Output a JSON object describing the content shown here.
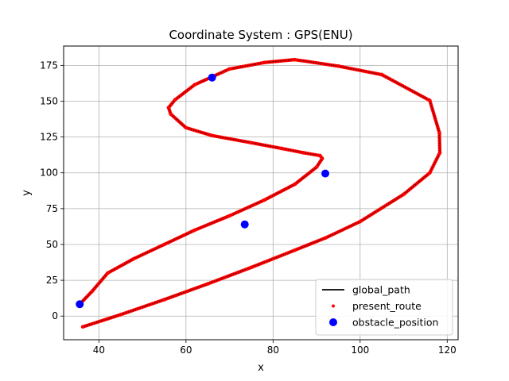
{
  "chart_data": {
    "type": "line",
    "title": "Coordinate System : GPS(ENU)",
    "xlabel": "x",
    "ylabel": "y",
    "xlim": [
      31.9,
      122.5
    ],
    "ylim": [
      -16.5,
      188.5
    ],
    "xticks": [
      40,
      60,
      80,
      100,
      120
    ],
    "yticks": [
      0,
      25,
      50,
      75,
      100,
      125,
      150,
      175
    ],
    "grid": true,
    "legend_position": "bottom-right",
    "series": [
      {
        "name": "global_path",
        "style": "line",
        "color": "#000000",
        "x": [
          36.3,
          45.0,
          55.0,
          65.0,
          75.0,
          85.0,
          92.0,
          100.0,
          110.0,
          116.0,
          118.3,
          118.2,
          116.0,
          105.0,
          95.0,
          85.0,
          78.0,
          70.0,
          62.0,
          57.5,
          56.0,
          56.5,
          60.0,
          66.0,
          75.0,
          82.0,
          87.0,
          90.8,
          91.3,
          90.0,
          85.0,
          78.0,
          70.0,
          62.0,
          55.0,
          48.0,
          42.0,
          38.5,
          35.6
        ],
        "y": [
          -7.5,
          1.0,
          11.5,
          22.5,
          34.0,
          46.0,
          54.5,
          66.0,
          85.0,
          100.0,
          114.0,
          128.0,
          150.5,
          168.5,
          174.5,
          179.0,
          177.0,
          172.5,
          161.5,
          151.0,
          145.5,
          141.0,
          131.5,
          126.0,
          121.0,
          117.0,
          114.0,
          112.0,
          110.0,
          104.0,
          92.0,
          81.0,
          70.0,
          60.0,
          50.0,
          40.0,
          30.0,
          17.5,
          8.3
        ]
      },
      {
        "name": "present_route",
        "style": "points",
        "color": "#ff0000",
        "x": [
          36.3,
          45.0,
          55.0,
          65.0,
          75.0,
          85.0,
          92.0,
          100.0,
          110.0,
          116.0,
          118.3,
          118.2,
          116.0,
          105.0,
          95.0,
          85.0,
          78.0,
          70.0,
          62.0,
          57.5,
          56.0,
          56.5,
          60.0,
          66.0,
          75.0,
          82.0,
          87.0,
          90.8,
          91.3,
          90.0,
          85.0,
          78.0,
          70.0,
          62.0,
          55.0,
          48.0,
          42.0,
          38.5,
          35.6
        ],
        "y": [
          -7.5,
          1.0,
          11.5,
          22.5,
          34.0,
          46.0,
          54.5,
          66.0,
          85.0,
          100.0,
          114.0,
          128.0,
          150.5,
          168.5,
          174.5,
          179.0,
          177.0,
          172.5,
          161.5,
          151.0,
          145.5,
          141.0,
          131.5,
          126.0,
          121.0,
          117.0,
          114.0,
          112.0,
          110.0,
          104.0,
          92.0,
          81.0,
          70.0,
          60.0,
          50.0,
          40.0,
          30.0,
          17.5,
          8.3
        ]
      },
      {
        "name": "obstacle_position",
        "style": "markers",
        "color": "#0000ff",
        "x": [
          35.6,
          66.0,
          92.0,
          73.5
        ],
        "y": [
          8.3,
          166.5,
          99.5,
          64.0
        ]
      }
    ]
  }
}
